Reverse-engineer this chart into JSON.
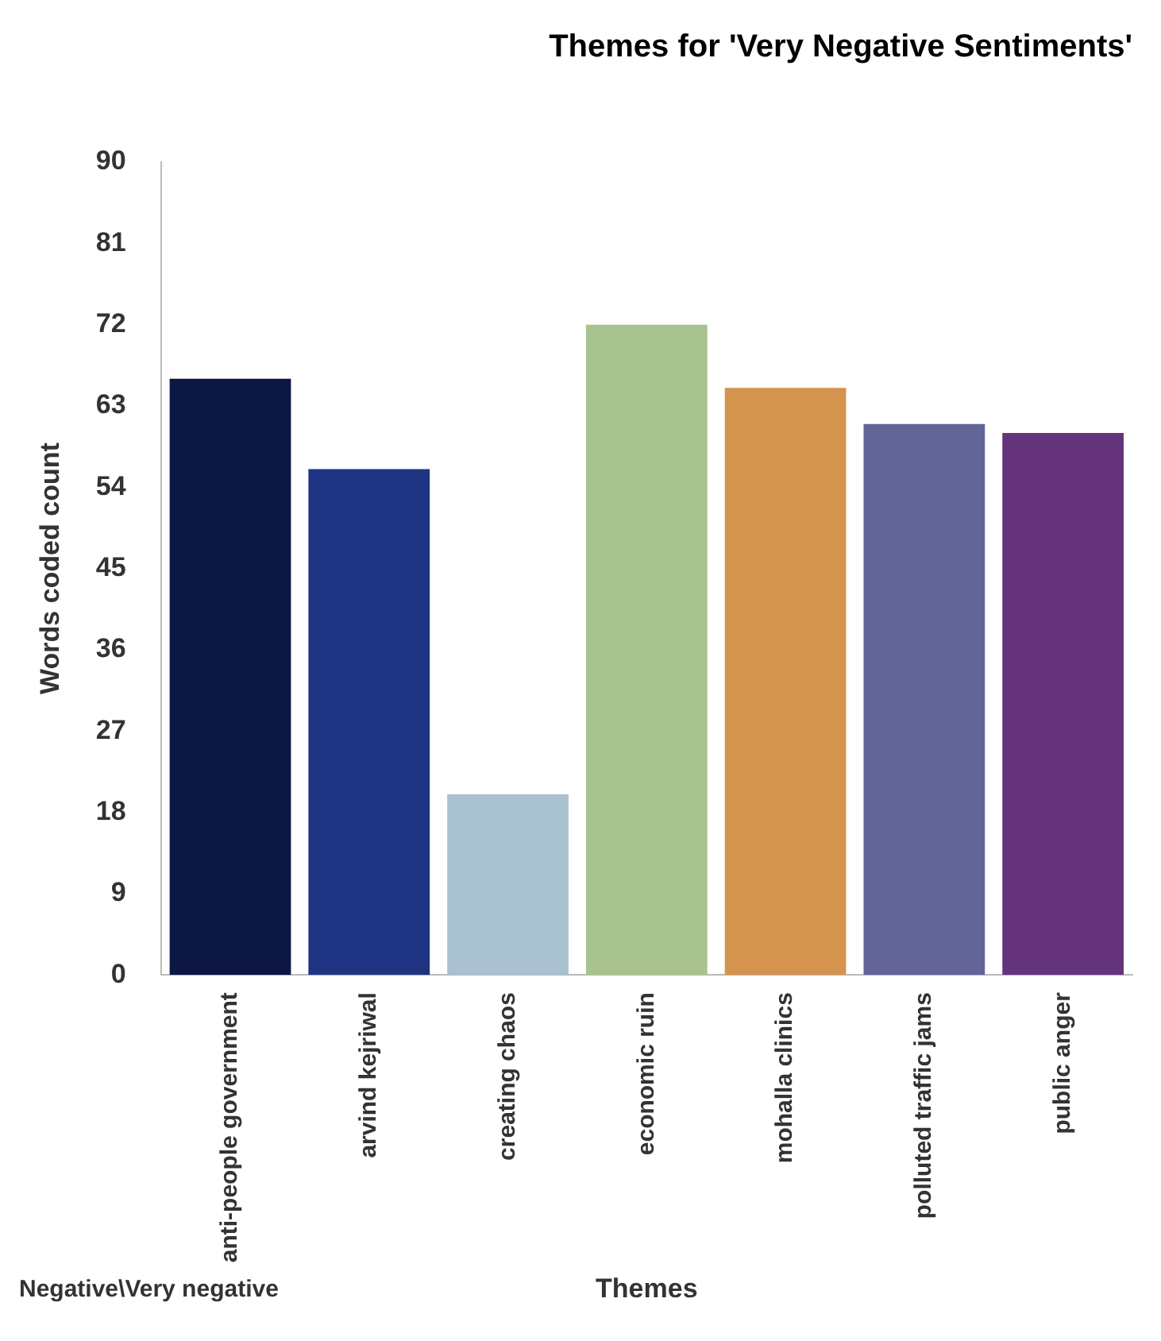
{
  "chart_data": {
    "type": "bar",
    "title": "Themes for 'Very Negative Sentiments'",
    "xlabel": "Themes",
    "ylabel": "Words coded count",
    "categories": [
      "anti-people government",
      "arvind kejriwal",
      "creating chaos",
      "economic ruin",
      "mohalla clinics",
      "polluted traffic jams",
      "public anger"
    ],
    "series": [
      {
        "name": "Negative\\Very negative",
        "values": [
          66,
          56,
          20,
          72,
          65,
          61,
          60
        ],
        "colors": [
          "#0c1744",
          "#1e3482",
          "#a9c1d0",
          "#a8c28e",
          "#d4944e",
          "#636598",
          "#65337c"
        ]
      }
    ],
    "ylim": [
      0,
      90
    ],
    "yticks": [
      0,
      9,
      18,
      27,
      36,
      45,
      54,
      63,
      72,
      81,
      90
    ],
    "grid": false,
    "legend": "bottom left"
  }
}
